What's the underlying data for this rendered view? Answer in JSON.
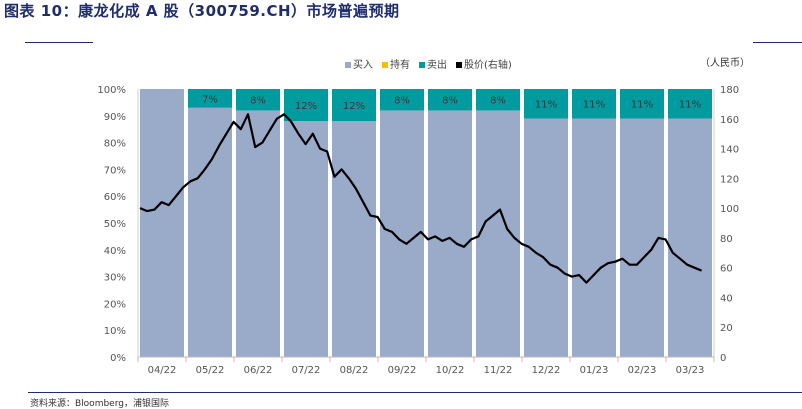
{
  "header": {
    "title": "图表  10：康龙化成 A 股（300759.CH）市场普遍预期"
  },
  "footer": {
    "source": "资料来源：Bloomberg，浦银国际"
  },
  "chart_data": {
    "type": "bar",
    "stacked": true,
    "unit_label": "（人民币）",
    "categories": [
      "04/22",
      "05/22",
      "06/22",
      "07/22",
      "08/22",
      "09/22",
      "10/22",
      "11/22",
      "12/22",
      "01/23",
      "02/23",
      "03/23"
    ],
    "legend_position": "top",
    "series": [
      {
        "name": "买入",
        "color": "#9aabca",
        "values": [
          100,
          93,
          92,
          88,
          88,
          92,
          92,
          92,
          89,
          89,
          89,
          89
        ]
      },
      {
        "name": "持有",
        "color": "#f5c000",
        "values": [
          0,
          0,
          0,
          0,
          0,
          0,
          0,
          0,
          0,
          0,
          0,
          0
        ]
      },
      {
        "name": "卖出",
        "color": "#009b9e",
        "values": [
          0,
          7,
          8,
          12,
          12,
          8,
          8,
          8,
          11,
          11,
          11,
          11
        ]
      }
    ],
    "data_labels": [
      "",
      "7%",
      "8%",
      "12%",
      "12%",
      "8%",
      "8%",
      "8%",
      "11%",
      "11%",
      "11%",
      "11%"
    ],
    "line_series": {
      "name": "股价(右轴)",
      "color": "#000000",
      "axis": "right",
      "x": [
        0,
        0.15,
        0.3,
        0.45,
        0.6,
        0.75,
        0.9,
        1.05,
        1.2,
        1.35,
        1.5,
        1.65,
        1.8,
        1.95,
        2.1,
        2.25,
        2.4,
        2.55,
        2.7,
        2.85,
        3.0,
        3.15,
        3.3,
        3.45,
        3.6,
        3.75,
        3.9,
        4.05,
        4.2,
        4.35,
        4.5,
        4.65,
        4.8,
        4.95,
        5.1,
        5.25,
        5.4,
        5.55,
        5.7,
        5.85,
        6.0,
        6.15,
        6.3,
        6.45,
        6.6,
        6.75,
        6.9,
        7.05,
        7.2,
        7.35,
        7.5,
        7.65,
        7.8,
        7.95,
        8.1,
        8.25,
        8.4,
        8.55,
        8.7,
        8.85,
        9.0,
        9.15,
        9.3,
        9.45,
        9.6,
        9.75,
        9.9,
        10.05,
        10.2,
        10.35,
        10.5,
        10.65,
        10.8,
        10.95,
        11.1,
        11.25,
        11.4,
        11.55,
        11.7
      ],
      "values": [
        100,
        98,
        99,
        104,
        102,
        108,
        114,
        118,
        120,
        126,
        133,
        142,
        150,
        158,
        153,
        163,
        141,
        144,
        152,
        160,
        163,
        158,
        150,
        143,
        150,
        140,
        138,
        121,
        126,
        120,
        113,
        104,
        95,
        94,
        86,
        84,
        79,
        76,
        80,
        84,
        79,
        81,
        78,
        80,
        76,
        74,
        79,
        81,
        91,
        95,
        99,
        86,
        80,
        76,
        74,
        70,
        67,
        62,
        60,
        56,
        54,
        55,
        50,
        55,
        60,
        63,
        64,
        66,
        62,
        62,
        67,
        72,
        80,
        79,
        70,
        66,
        62,
        60,
        58
      ]
    },
    "left_axis": {
      "min": 0,
      "max": 100,
      "ticks": [
        "0%",
        "10%",
        "20%",
        "30%",
        "40%",
        "50%",
        "60%",
        "70%",
        "80%",
        "90%",
        "100%"
      ]
    },
    "right_axis": {
      "min": 0,
      "max": 180,
      "ticks": [
        "0",
        "20",
        "40",
        "60",
        "80",
        "100",
        "120",
        "140",
        "160",
        "180"
      ]
    },
    "grid": false
  }
}
